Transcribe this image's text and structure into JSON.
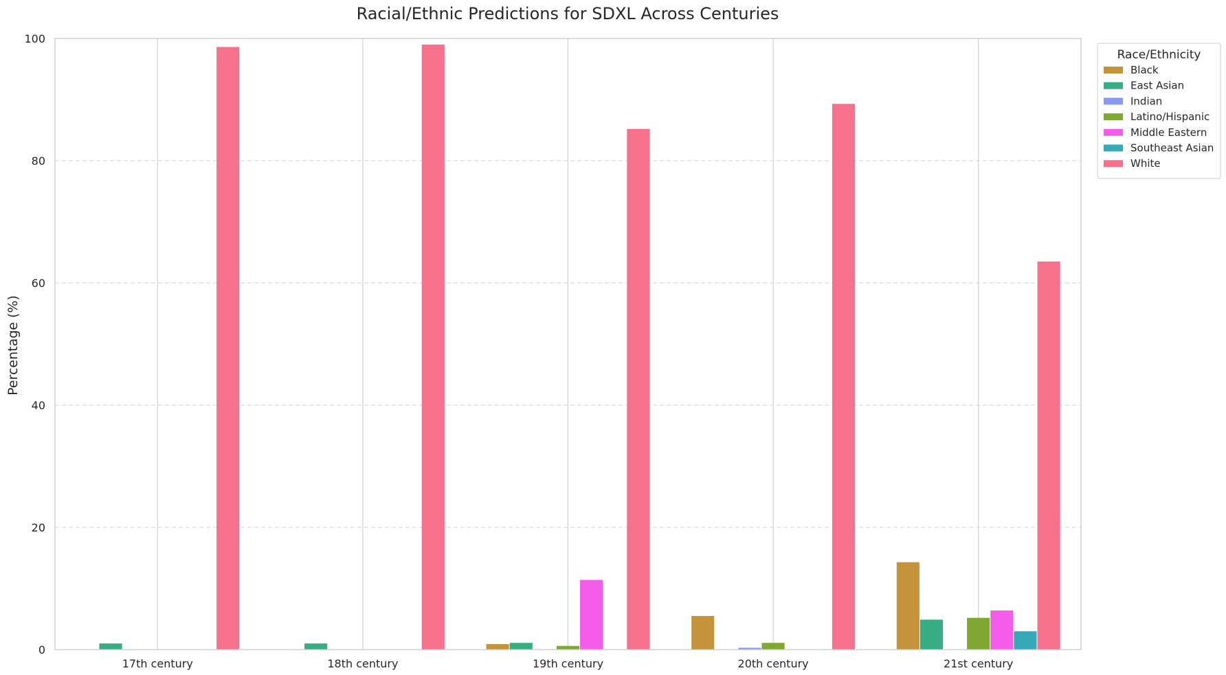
{
  "chart_data": {
    "type": "bar",
    "title": "Racial/Ethnic Predictions for SDXL Across Centuries",
    "xlabel": "",
    "ylabel": "Percentage (%)",
    "ylim": [
      0,
      100
    ],
    "yticks": [
      0,
      20,
      40,
      60,
      80,
      100
    ],
    "grid": {
      "y": "dashed",
      "x": "solid-at-categories"
    },
    "categories": [
      "17th century",
      "18th century",
      "19th century",
      "20th century",
      "21st century"
    ],
    "legend": {
      "title": "Race/Ethnicity",
      "placement": "outside-top-right"
    },
    "series": [
      {
        "name": "Black",
        "color": "#c4933a",
        "values": [
          0,
          0,
          0.9,
          5.5,
          14.3
        ]
      },
      {
        "name": "East Asian",
        "color": "#37ad84",
        "values": [
          1.0,
          1.0,
          1.1,
          0,
          4.9
        ]
      },
      {
        "name": "Indian",
        "color": "#8799f0",
        "values": [
          0,
          0,
          0,
          0.3,
          0
        ]
      },
      {
        "name": "Latino/Hispanic",
        "color": "#7fa832",
        "values": [
          0,
          0,
          0.6,
          1.1,
          5.2
        ]
      },
      {
        "name": "Middle Eastern",
        "color": "#f25ce8",
        "values": [
          0,
          0,
          11.4,
          0,
          6.4
        ]
      },
      {
        "name": "Southeast Asian",
        "color": "#36a9b9",
        "values": [
          0,
          0,
          0,
          0,
          3.0
        ]
      },
      {
        "name": "White",
        "color": "#f6718b",
        "values": [
          98.6,
          99.0,
          85.2,
          89.3,
          63.5
        ]
      }
    ]
  }
}
